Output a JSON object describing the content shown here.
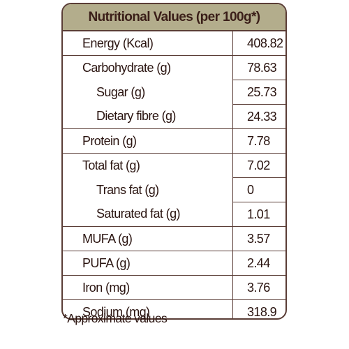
{
  "table": {
    "title": "Nutritional Values (per 100g*)",
    "rows": [
      {
        "label": "Energy (Kcal)",
        "value": "408.82"
      },
      {
        "label": "Carbohydrate (g)",
        "value": "78.63"
      },
      {
        "label": "Sugar (g)",
        "value": "25.73"
      },
      {
        "label": "Dietary fibre (g)",
        "value": "24.33"
      },
      {
        "label": "Protein (g)",
        "value": "7.78"
      },
      {
        "label": "Total fat (g)",
        "value": "7.02"
      },
      {
        "label": "Trans fat (g)",
        "value": "0"
      },
      {
        "label": "Saturated fat (g)",
        "value": "1.01"
      },
      {
        "label": "MUFA (g)",
        "value": "3.57"
      },
      {
        "label": "PUFA (g)",
        "value": "2.44"
      },
      {
        "label": "Iron (mg)",
        "value": "3.76"
      },
      {
        "label": "Sodium (mg)",
        "value": "318.9"
      }
    ]
  },
  "footnote": "*Approximate values"
}
